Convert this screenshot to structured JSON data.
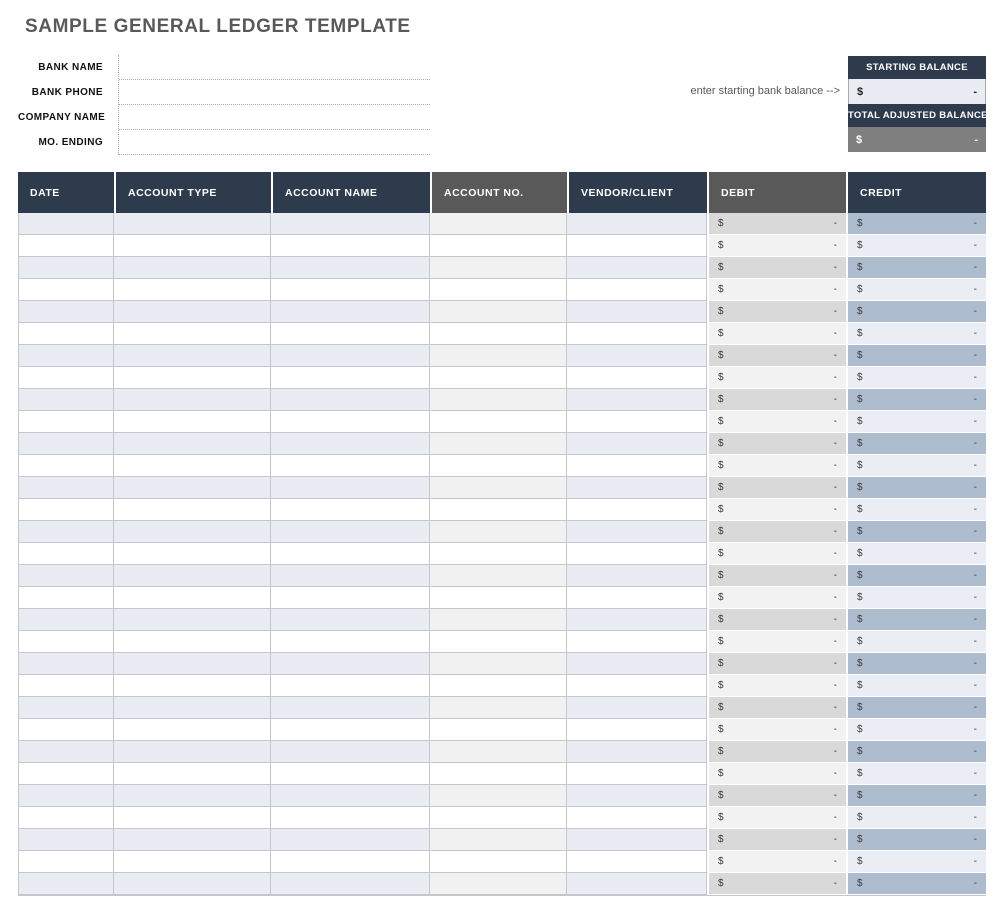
{
  "page": {
    "title": "SAMPLE GENERAL LEDGER TEMPLATE"
  },
  "form": {
    "fields": [
      {
        "id": "bank-name",
        "label": "BANK NAME",
        "value": ""
      },
      {
        "id": "bank-phone",
        "label": "BANK PHONE",
        "value": ""
      },
      {
        "id": "company-name",
        "label": "COMPANY NAME",
        "value": ""
      },
      {
        "id": "mo-ending",
        "label": "MO. ENDING",
        "value": ""
      }
    ]
  },
  "balances": {
    "hint": "enter starting bank balance -->",
    "starting": {
      "label": "STARTING BALANCE",
      "currency": "$",
      "value": "-"
    },
    "total_adjusted": {
      "label": "TOTAL ADJUSTED BALANCE",
      "currency": "$",
      "value": "-"
    }
  },
  "table": {
    "columns": [
      {
        "id": "date",
        "label": "DATE",
        "theme": "navy",
        "type": "plain"
      },
      {
        "id": "account-type",
        "label": "ACCOUNT TYPE",
        "theme": "navy",
        "type": "plain"
      },
      {
        "id": "account-name",
        "label": "ACCOUNT NAME",
        "theme": "navy",
        "type": "plain"
      },
      {
        "id": "account-no",
        "label": "ACCOUNT NO.",
        "theme": "gray",
        "type": "no"
      },
      {
        "id": "vendor-client",
        "label": "VENDOR/CLIENT",
        "theme": "navy",
        "type": "plain"
      },
      {
        "id": "debit",
        "label": "DEBIT",
        "theme": "gray",
        "type": "debit"
      },
      {
        "id": "credit",
        "label": "CREDIT",
        "theme": "navy",
        "type": "credit"
      }
    ],
    "row_count": 31,
    "cell_currency": "$",
    "cell_amount": "-",
    "empty_cell_value": ""
  },
  "colors": {
    "navy": "#2e3b4d",
    "gray_header": "#595959",
    "title": "#595959",
    "row_alt": "#e9edf3",
    "row_alt_no": "#f1f1f1",
    "debit_odd": "#d9d9d9",
    "debit_even": "#f2f2f2",
    "credit_odd": "#aebccf",
    "credit_even": "#eaeef4",
    "grid": "#c4c8cd",
    "total_cell": "#7f7f7f",
    "balance_cell": "#e9edf3"
  }
}
